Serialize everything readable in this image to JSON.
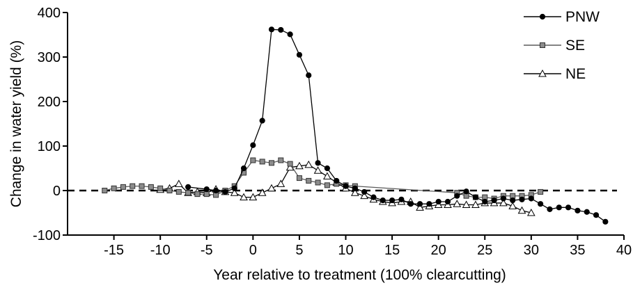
{
  "chart_data": {
    "type": "line",
    "title": "",
    "xlabel": "Year relative to treatment (100% clearcutting)",
    "ylabel": "Change in water yield (%)",
    "xlim": [
      -20,
      40
    ],
    "ylim": [
      -100,
      400
    ],
    "xticks": [
      -15,
      -10,
      -5,
      0,
      5,
      10,
      15,
      20,
      25,
      30,
      35,
      40
    ],
    "yticks": [
      -100,
      0,
      100,
      200,
      300,
      400
    ],
    "reference_line": {
      "y": 0,
      "style": "dashed"
    },
    "grid": false,
    "legend_position": "top-right",
    "series": [
      {
        "name": "PNW",
        "marker": "circle",
        "marker_fill": "#000000",
        "line_color": "#000000",
        "x": [
          -7,
          -5,
          -4,
          -3,
          -2,
          -1,
          0,
          1,
          2,
          3,
          4,
          5,
          6,
          7,
          8,
          9,
          10,
          11,
          12,
          13,
          14,
          15,
          16,
          17,
          18,
          19,
          20,
          21,
          22,
          23,
          24,
          25,
          26,
          27,
          28,
          29,
          30,
          31,
          32,
          33,
          34,
          35,
          36,
          37,
          38
        ],
        "y": [
          8,
          3,
          0,
          -3,
          5,
          50,
          102,
          157,
          362,
          361,
          351,
          305,
          259,
          62,
          50,
          22,
          10,
          5,
          -3,
          -15,
          -22,
          -22,
          -20,
          -30,
          -30,
          -30,
          -25,
          -25,
          -12,
          -2,
          -15,
          -25,
          -22,
          -18,
          -22,
          -20,
          -18,
          -30,
          -42,
          -38,
          -38,
          -45,
          -48,
          -55,
          -70
        ]
      },
      {
        "name": "SE",
        "marker": "square",
        "marker_fill": "#8c8c8c",
        "line_color": "#5a5a5a",
        "x": [
          -16,
          -15,
          -14,
          -13,
          -12,
          -11,
          -10,
          -9,
          -8,
          -7,
          -6,
          -5,
          -4,
          -3,
          -2,
          -1,
          0,
          1,
          2,
          3,
          4,
          5,
          6,
          7,
          8,
          9,
          10,
          11,
          22,
          23,
          24,
          25,
          26,
          27,
          28,
          29,
          30,
          31
        ],
        "y": [
          0,
          5,
          8,
          10,
          10,
          8,
          5,
          0,
          -3,
          -5,
          -8,
          -8,
          -10,
          0,
          10,
          40,
          68,
          65,
          62,
          68,
          60,
          28,
          22,
          18,
          12,
          15,
          12,
          10,
          -5,
          -12,
          -15,
          -15,
          -18,
          -12,
          -12,
          -12,
          -10,
          -3
        ]
      },
      {
        "name": "NE",
        "marker": "triangle",
        "marker_fill": "#ffffff",
        "line_color": "#000000",
        "x": [
          -10,
          -9,
          -8,
          -7,
          -6,
          -5,
          -4,
          -3,
          -2,
          -1,
          0,
          1,
          2,
          3,
          4,
          5,
          6,
          7,
          8,
          9,
          10,
          11,
          12,
          13,
          14,
          15,
          16,
          17,
          18,
          19,
          20,
          21,
          22,
          23,
          24,
          25,
          26,
          27,
          28,
          29,
          30
        ],
        "y": [
          2,
          5,
          15,
          -5,
          -3,
          -5,
          3,
          -3,
          -5,
          -15,
          -15,
          -5,
          5,
          15,
          52,
          55,
          58,
          45,
          32,
          18,
          5,
          -5,
          -12,
          -20,
          -25,
          -28,
          -25,
          -25,
          -38,
          -35,
          -32,
          -32,
          -30,
          -32,
          -32,
          -28,
          -28,
          -28,
          -35,
          -45,
          -50
        ]
      }
    ]
  }
}
